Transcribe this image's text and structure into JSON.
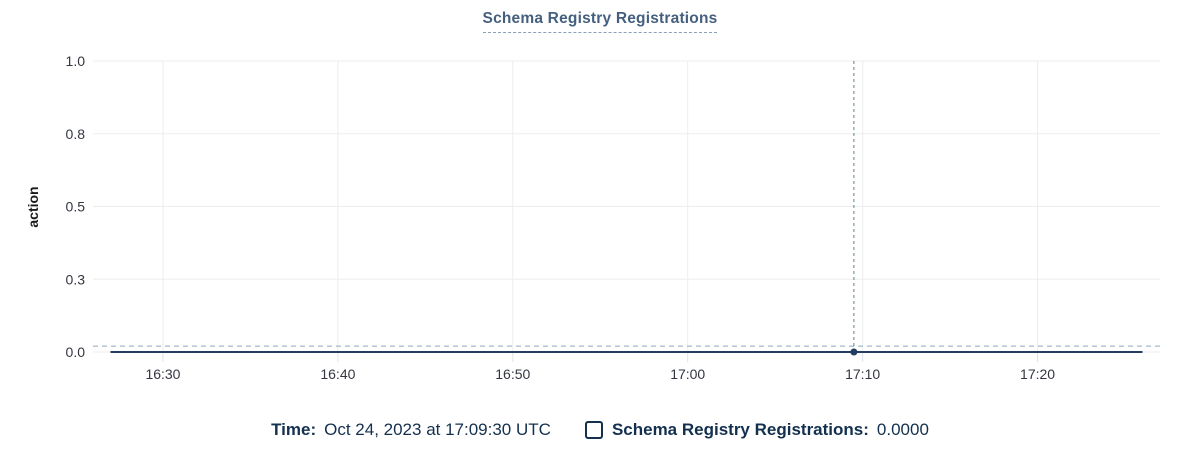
{
  "title": "Schema Registry Registrations",
  "legend": {
    "time_label": "Time:",
    "time_value": "Oct 24, 2023 at 17:09:30 UTC",
    "series_checkbox_state": "unchecked",
    "series_label": "Schema Registry Registrations:",
    "series_value": "0.0000"
  },
  "chart_data": {
    "type": "line",
    "title": "Schema Registry Registrations",
    "xlabel": "",
    "ylabel": "action",
    "ylim": [
      0,
      1
    ],
    "grid": true,
    "legend_position": "bottom",
    "y_ticks": [
      {
        "value": 0,
        "label": "0.0"
      },
      {
        "value": 0.25,
        "label": "0.3"
      },
      {
        "value": 0.5,
        "label": "0.5"
      },
      {
        "value": 0.75,
        "label": "0.8"
      },
      {
        "value": 1,
        "label": "1.0"
      }
    ],
    "x_domain_minutes": [
      986,
      1047
    ],
    "x_ticks": [
      {
        "minutes": 990,
        "label": "16:30"
      },
      {
        "minutes": 1000,
        "label": "16:40"
      },
      {
        "minutes": 1010,
        "label": "16:50"
      },
      {
        "minutes": 1020,
        "label": "17:00"
      },
      {
        "minutes": 1030,
        "label": "17:10"
      },
      {
        "minutes": 1040,
        "label": "17:20"
      }
    ],
    "series": [
      {
        "name": "Schema Registry Registrations",
        "value": 0.0,
        "start_minutes": 987,
        "end_minutes": 1046,
        "color": "#223d5f"
      }
    ],
    "crosshair": {
      "minutes": 1029.5,
      "time": "17:09:30",
      "y_value": 0.02,
      "vertical_color": "#64808f",
      "horizontal_color": "#8fa6bc"
    },
    "hover_point": {
      "minutes": 1029.5,
      "value": 0.0,
      "color": "#223d5f"
    },
    "colors": {
      "grid": "#ededef",
      "tick_mark": "#dfe3e8",
      "axis_text": "#343741",
      "title": "#45607f",
      "legend_text": "#13304f"
    }
  }
}
